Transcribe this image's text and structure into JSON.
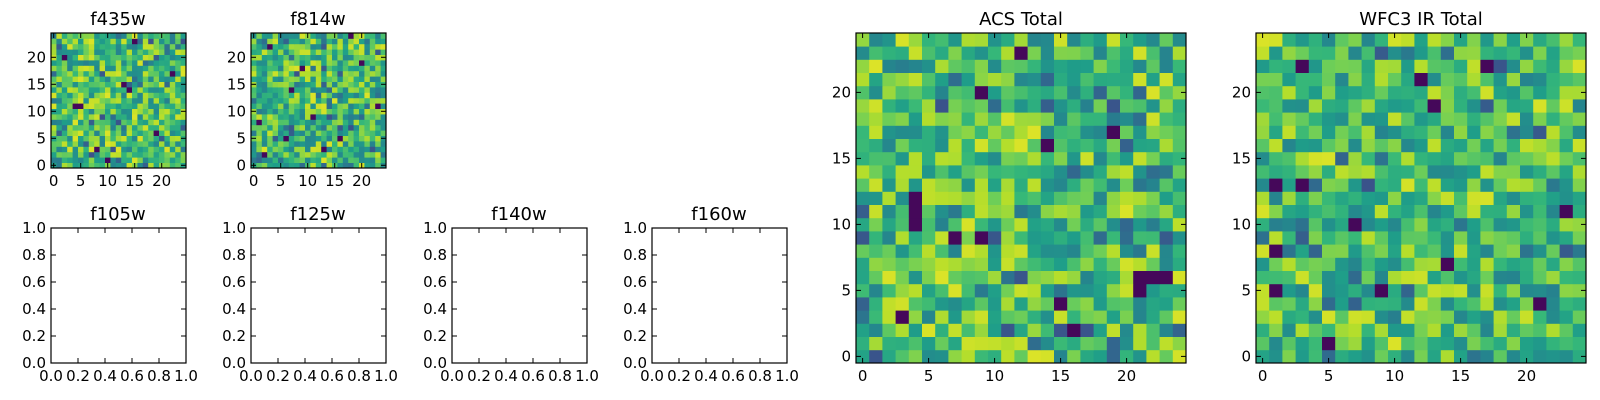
{
  "chart_data": [
    {
      "type": "heatmap",
      "title": "f435w",
      "grid_size": 25,
      "xticks": [
        "0",
        "5",
        "10",
        "15",
        "20"
      ],
      "yticks": [
        "0",
        "5",
        "10",
        "15",
        "20"
      ],
      "xlim": [
        -0.5,
        24.5
      ],
      "ylim": [
        -0.5,
        24.5
      ],
      "colormap": "viridis",
      "seed": 11,
      "dark_cells": [
        [
          4,
          11
        ],
        [
          5,
          11
        ],
        [
          13,
          15
        ],
        [
          14,
          14
        ],
        [
          22,
          17
        ],
        [
          8,
          3
        ],
        [
          19,
          6
        ],
        [
          2,
          20
        ],
        [
          15,
          23
        ],
        [
          10,
          1
        ]
      ]
    },
    {
      "type": "heatmap",
      "title": "f814w",
      "grid_size": 25,
      "xticks": [
        "0",
        "5",
        "10",
        "15",
        "20"
      ],
      "yticks": [
        "0",
        "5",
        "10",
        "15",
        "20"
      ],
      "xlim": [
        -0.5,
        24.5
      ],
      "ylim": [
        -0.5,
        24.5
      ],
      "colormap": "viridis",
      "seed": 23,
      "dark_cells": [
        [
          2,
          2
        ],
        [
          7,
          14
        ],
        [
          11,
          9
        ],
        [
          16,
          5
        ],
        [
          20,
          19
        ],
        [
          3,
          22
        ],
        [
          23,
          11
        ],
        [
          9,
          18
        ],
        [
          13,
          3
        ],
        [
          18,
          24
        ],
        [
          1,
          8
        ],
        [
          6,
          5
        ]
      ]
    },
    {
      "type": "empty",
      "title": "f105w",
      "xticks": [
        "0.0",
        "0.2",
        "0.4",
        "0.6",
        "0.8",
        "1.0"
      ],
      "yticks": [
        "0.0",
        "0.2",
        "0.4",
        "0.6",
        "0.8",
        "1.0"
      ],
      "xlim": [
        0,
        1
      ],
      "ylim": [
        0,
        1
      ]
    },
    {
      "type": "empty",
      "title": "f125w",
      "xticks": [
        "0.0",
        "0.2",
        "0.4",
        "0.6",
        "0.8",
        "1.0"
      ],
      "yticks": [
        "0.0",
        "0.2",
        "0.4",
        "0.6",
        "0.8",
        "1.0"
      ],
      "xlim": [
        0,
        1
      ],
      "ylim": [
        0,
        1
      ]
    },
    {
      "type": "empty",
      "title": "f140w",
      "xticks": [
        "0.0",
        "0.2",
        "0.4",
        "0.6",
        "0.8",
        "1.0"
      ],
      "yticks": [
        "0.0",
        "0.2",
        "0.4",
        "0.6",
        "0.8",
        "1.0"
      ],
      "xlim": [
        0,
        1
      ],
      "ylim": [
        0,
        1
      ]
    },
    {
      "type": "empty",
      "title": "f160w",
      "xticks": [
        "0.0",
        "0.2",
        "0.4",
        "0.6",
        "0.8",
        "1.0"
      ],
      "yticks": [
        "0.0",
        "0.2",
        "0.4",
        "0.6",
        "0.8",
        "1.0"
      ],
      "xlim": [
        0,
        1
      ],
      "ylim": [
        0,
        1
      ]
    },
    {
      "type": "heatmap",
      "title": "ACS Total",
      "grid_size": 25,
      "xticks": [
        "0",
        "5",
        "10",
        "15",
        "20"
      ],
      "yticks": [
        "0",
        "5",
        "10",
        "15",
        "20"
      ],
      "xlim": [
        -0.5,
        24.5
      ],
      "ylim": [
        -0.5,
        24.5
      ],
      "colormap": "viridis",
      "seed": 37,
      "dark_cells": [
        [
          4,
          10
        ],
        [
          4,
          11
        ],
        [
          4,
          12
        ],
        [
          9,
          9
        ],
        [
          7,
          9
        ],
        [
          12,
          23
        ],
        [
          16,
          2
        ],
        [
          21,
          6
        ],
        [
          22,
          6
        ],
        [
          23,
          6
        ],
        [
          14,
          16
        ],
        [
          9,
          20
        ],
        [
          19,
          17
        ],
        [
          3,
          3
        ],
        [
          15,
          4
        ],
        [
          21,
          5
        ]
      ]
    },
    {
      "type": "heatmap",
      "title": "WFC3 IR Total",
      "grid_size": 25,
      "xticks": [
        "0",
        "5",
        "10",
        "15",
        "20"
      ],
      "yticks": [
        "0",
        "5",
        "10",
        "15",
        "20"
      ],
      "xlim": [
        -0.5,
        24.5
      ],
      "ylim": [
        -0.5,
        24.5
      ],
      "colormap": "viridis",
      "seed": 53,
      "dark_cells": [
        [
          1,
          13
        ],
        [
          3,
          13
        ],
        [
          7,
          10
        ],
        [
          1,
          8
        ],
        [
          3,
          22
        ],
        [
          12,
          21
        ],
        [
          13,
          19
        ],
        [
          14,
          7
        ],
        [
          23,
          11
        ],
        [
          21,
          4
        ],
        [
          1,
          5
        ],
        [
          9,
          5
        ],
        [
          17,
          22
        ],
        [
          5,
          1
        ]
      ]
    }
  ]
}
